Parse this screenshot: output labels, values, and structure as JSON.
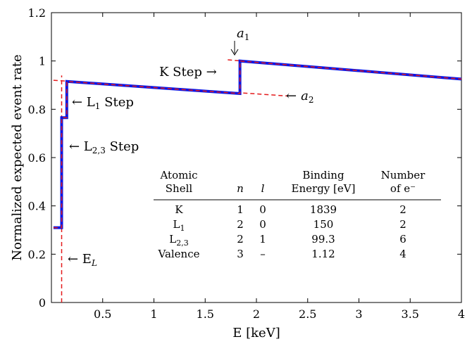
{
  "chart_data": {
    "type": "line",
    "xlabel": "E [keV]",
    "ylabel": "Normalized expected event rate",
    "xlim": [
      0,
      4
    ],
    "ylim": [
      0,
      1.2
    ],
    "x_ticks": [
      "0.5",
      "1",
      "1.5",
      "2",
      "2.5",
      "3",
      "3.5",
      "4"
    ],
    "y_ticks": [
      "0",
      "0.2",
      "0.4",
      "0.6",
      "0.8",
      "1",
      "1.2"
    ],
    "grid": false,
    "series": [
      {
        "style": "solid",
        "color": "#0a16e6",
        "x": [
          0.02,
          0.1,
          0.1,
          0.15,
          0.15,
          1.839,
          1.839,
          4.0
        ],
        "y": [
          0.31,
          0.31,
          0.765,
          0.765,
          0.915,
          0.865,
          1.0,
          0.925
        ]
      },
      {
        "style": "dashed",
        "color": "#e41a1c",
        "x": [
          0.02,
          0.1,
          0.1,
          0.15,
          0.15,
          1.839,
          1.839,
          4.0
        ],
        "y": [
          0.31,
          0.31,
          0.765,
          0.765,
          0.915,
          0.865,
          1.0,
          0.925
        ]
      }
    ],
    "guides": [
      {
        "name": "a2",
        "style": "dashed",
        "color": "#e41a1c",
        "x": [
          0.02,
          2.3
        ],
        "y": [
          0.92,
          0.855
        ]
      },
      {
        "name": "a1",
        "style": "dashed",
        "color": "#e41a1c",
        "x": [
          1.72,
          1.86
        ],
        "y": [
          1.005,
          1.0
        ]
      },
      {
        "name": "EL",
        "style": "dashed",
        "color": "#e41a1c",
        "x": [
          0.1,
          0.1
        ],
        "y": [
          0,
          0.94
        ]
      }
    ],
    "annotations": {
      "a1": "a",
      "a1_sub": "1",
      "a2_arrow": "←",
      "a2": "a",
      "a2_sub": "2",
      "k_step": "K Step →",
      "l1_arrow": "← L",
      "l1_sub": "1",
      "l1_rest": " Step",
      "l23_arrow": "← L",
      "l23_sub": "2,3",
      "l23_rest": " Step",
      "el_arrow": "← E",
      "el_sub": "L"
    },
    "table": {
      "headers": [
        [
          "Atomic",
          "Shell"
        ],
        [
          "",
          "n"
        ],
        [
          "",
          "l"
        ],
        [
          "Binding",
          "Energy [eV]"
        ],
        [
          "Number",
          "of e⁻"
        ]
      ],
      "rows": [
        {
          "shell": "K",
          "shell_sub": "",
          "n": "1",
          "l": "0",
          "energy": "1839",
          "electrons": "2"
        },
        {
          "shell": "L",
          "shell_sub": "1",
          "n": "2",
          "l": "0",
          "energy": "150",
          "electrons": "2"
        },
        {
          "shell": "L",
          "shell_sub": "2,3",
          "n": "2",
          "l": "1",
          "energy": "99.3",
          "electrons": "6"
        },
        {
          "shell": "Valence",
          "shell_sub": "",
          "n": "3",
          "l": "–",
          "energy": "1.12",
          "electrons": "4"
        }
      ]
    }
  }
}
